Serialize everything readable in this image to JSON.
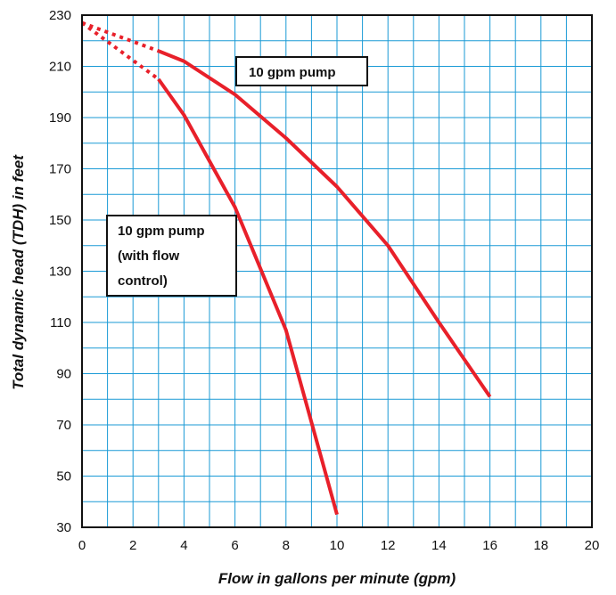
{
  "chart_data": {
    "type": "line",
    "xlabel": "Flow in gallons per minute (gpm)",
    "ylabel": "Total dynamic head (TDH) in feet",
    "xlim": [
      0,
      20
    ],
    "ylim": [
      30,
      230
    ],
    "xticks": [
      "0",
      "2",
      "4",
      "6",
      "8",
      "10",
      "12",
      "14",
      "16",
      "18",
      "20"
    ],
    "yticks": [
      "30",
      "50",
      "70",
      "90",
      "110",
      "130",
      "150",
      "170",
      "190",
      "210",
      "230"
    ],
    "grid": true,
    "colors": {
      "series": "#e8202a",
      "grid": "#1a9ad6",
      "frame": "#111111"
    },
    "series": [
      {
        "name": "10 gpm pump",
        "x": [
          3,
          4,
          6,
          8,
          10,
          12,
          14,
          16
        ],
        "y": [
          216,
          212,
          199,
          182,
          163,
          140,
          110,
          81
        ],
        "extrapolated": {
          "x": [
            0,
            3
          ],
          "y": [
            227,
            216
          ]
        }
      },
      {
        "name": "10 gpm pump (with flow control)",
        "x": [
          3,
          4,
          6,
          8,
          10
        ],
        "y": [
          205,
          191,
          155,
          107,
          35
        ],
        "extrapolated": {
          "x": [
            0,
            3
          ],
          "y": [
            227,
            205
          ]
        }
      }
    ],
    "annotations": [
      {
        "series": "10 gpm pump",
        "lines": [
          "10 gpm pump"
        ]
      },
      {
        "series": "10 gpm pump (with flow control)",
        "lines": [
          "10 gpm pump",
          "(with flow",
          "control)"
        ]
      }
    ]
  }
}
